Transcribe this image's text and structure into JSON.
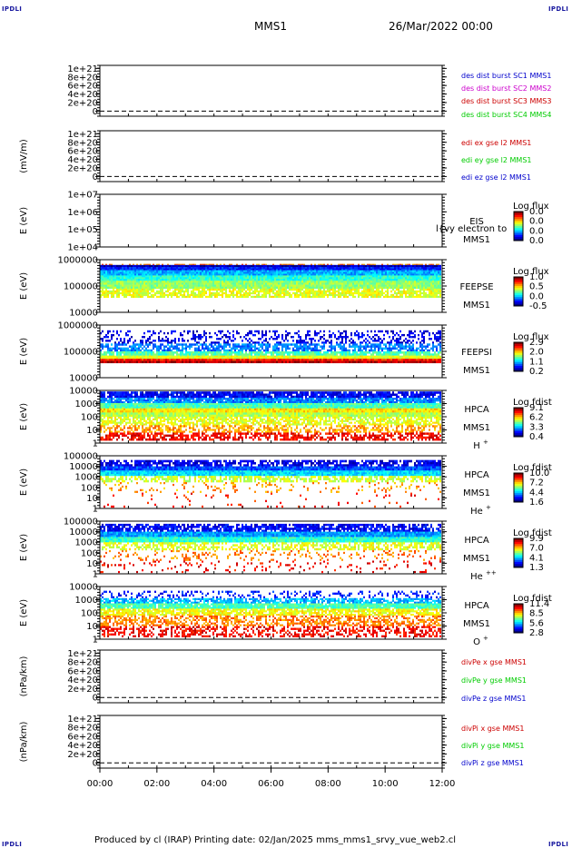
{
  "corner_label": "IPDLI",
  "header": {
    "spacecraft": "MMS1",
    "datetime": "26/Mar/2022 00:00"
  },
  "footer": "Produced by cl (IRAP)   Printing date: 02/Jan/2025   mms_mms1_srvy_vue_web2.cl",
  "colors": {
    "mms1": "#0000cc",
    "mms2": "#cc00cc",
    "mms3": "#cc0000",
    "mms4": "#00cc00"
  },
  "chart_data": [
    {
      "type": "line",
      "ylabel": "",
      "yticks": [
        "1e+21",
        "8e+20",
        "6e+20",
        "4e+20",
        "2e+20",
        "0"
      ],
      "series": [
        {
          "name": "des dist burst SC1 MMS1",
          "color": "#0000cc"
        },
        {
          "name": "des dist burst SC2 MMS2",
          "color": "#cc00cc"
        },
        {
          "name": "des dist burst SC3 MMS3",
          "color": "#cc0000"
        },
        {
          "name": "des dist burst SC4 MMS4",
          "color": "#00cc00"
        }
      ],
      "note_zero_line": true
    },
    {
      "type": "line",
      "ylabel": "(mV/m)",
      "yticks": [
        "1e+21",
        "8e+20",
        "6e+20",
        "4e+20",
        "2e+20",
        "0"
      ],
      "series": [
        {
          "name": "edi ex gse l2 MMS1",
          "color": "#cc0000"
        },
        {
          "name": "edi ey gse l2 MMS1",
          "color": "#00cc00"
        },
        {
          "name": "edi ez gse l2 MMS1",
          "color": "#0000cc"
        }
      ]
    },
    {
      "type": "heatmap",
      "ylabel": "E (eV)",
      "yticks": [
        "1e+07",
        "1e+06",
        "1e+05",
        "1e+04"
      ],
      "instrument": [
        "EIS",
        "MMS1"
      ],
      "overlay_text": "l{vy electron to",
      "cbar_title": "Log flux",
      "cbar_ticks": [
        "0.0",
        "0.0",
        "0.0",
        "0.0"
      ],
      "pattern": "empty"
    },
    {
      "type": "heatmap",
      "ylabel": "E (eV)",
      "yticks": [
        "1000000",
        "100000",
        "10000"
      ],
      "instrument": [
        "FEEPSE",
        "MMS1"
      ],
      "cbar_title": "Log flux",
      "cbar_ticks": [
        "1.0",
        "0.5",
        "0.0",
        "-0.5"
      ],
      "pattern": "feepse"
    },
    {
      "type": "heatmap",
      "ylabel": "E (eV)",
      "yticks": [
        "1000000",
        "100000",
        "10000"
      ],
      "instrument": [
        "FEEPSI",
        "MMS1"
      ],
      "cbar_title": "Log flux",
      "cbar_ticks": [
        "2.9",
        "2.0",
        "1.1",
        "0.2"
      ],
      "pattern": "feepsi"
    },
    {
      "type": "heatmap",
      "ylabel": "E (eV)",
      "yticks": [
        "10000",
        "1000",
        "100",
        "10",
        "1"
      ],
      "instrument": [
        "HPCA",
        "MMS1"
      ],
      "species": "H",
      "species_sup": "+",
      "cbar_title": "Log fdist",
      "cbar_ticks": [
        "9.1",
        "6.2",
        "3.3",
        "0.4"
      ],
      "pattern": "hpca_h"
    },
    {
      "type": "heatmap",
      "ylabel": "E (eV)",
      "yticks": [
        "100000",
        "10000",
        "1000",
        "100",
        "10",
        "1"
      ],
      "instrument": [
        "HPCA",
        "MMS1"
      ],
      "species": "He",
      "species_sup": "+",
      "cbar_title": "Log fdist",
      "cbar_ticks": [
        "10.0",
        "7.2",
        "4.4",
        "1.6"
      ],
      "pattern": "hpca_he1"
    },
    {
      "type": "heatmap",
      "ylabel": "E (eV)",
      "yticks": [
        "100000",
        "10000",
        "1000",
        "100",
        "10",
        "1"
      ],
      "instrument": [
        "HPCA",
        "MMS1"
      ],
      "species": "He",
      "species_sup": "++",
      "cbar_title": "Log fdist",
      "cbar_ticks": [
        "9.9",
        "7.0",
        "4.1",
        "1.3"
      ],
      "pattern": "hpca_he2"
    },
    {
      "type": "heatmap",
      "ylabel": "E (eV)",
      "yticks": [
        "10000",
        "1000",
        "100",
        "10",
        "1"
      ],
      "instrument": [
        "HPCA",
        "MMS1"
      ],
      "species": "O",
      "species_sup": "+",
      "cbar_title": "Log fdist",
      "cbar_ticks": [
        "11.4",
        "8.5",
        "5.6",
        "2.8"
      ],
      "pattern": "hpca_o"
    },
    {
      "type": "line",
      "ylabel": "(nPa/km)",
      "yticks": [
        "1e+21",
        "8e+20",
        "6e+20",
        "4e+20",
        "2e+20",
        "0"
      ],
      "series": [
        {
          "name": "divPe x gse MMS1",
          "color": "#cc0000"
        },
        {
          "name": "divPe y gse MMS1",
          "color": "#00cc00"
        },
        {
          "name": "divPe z gse MMS1",
          "color": "#0000cc"
        }
      ]
    },
    {
      "type": "line",
      "ylabel": "(nPa/km)",
      "yticks": [
        "1e+21",
        "8e+20",
        "6e+20",
        "4e+20",
        "2e+20",
        "0"
      ],
      "series": [
        {
          "name": "divPi x gse MMS1",
          "color": "#cc0000"
        },
        {
          "name": "divPi y gse MMS1",
          "color": "#00cc00"
        },
        {
          "name": "divPi z gse MMS1",
          "color": "#0000cc"
        }
      ]
    }
  ],
  "xaxis": {
    "ticks": [
      "00:00",
      "02:00",
      "04:00",
      "06:00",
      "08:00",
      "10:00",
      "12:00"
    ]
  }
}
